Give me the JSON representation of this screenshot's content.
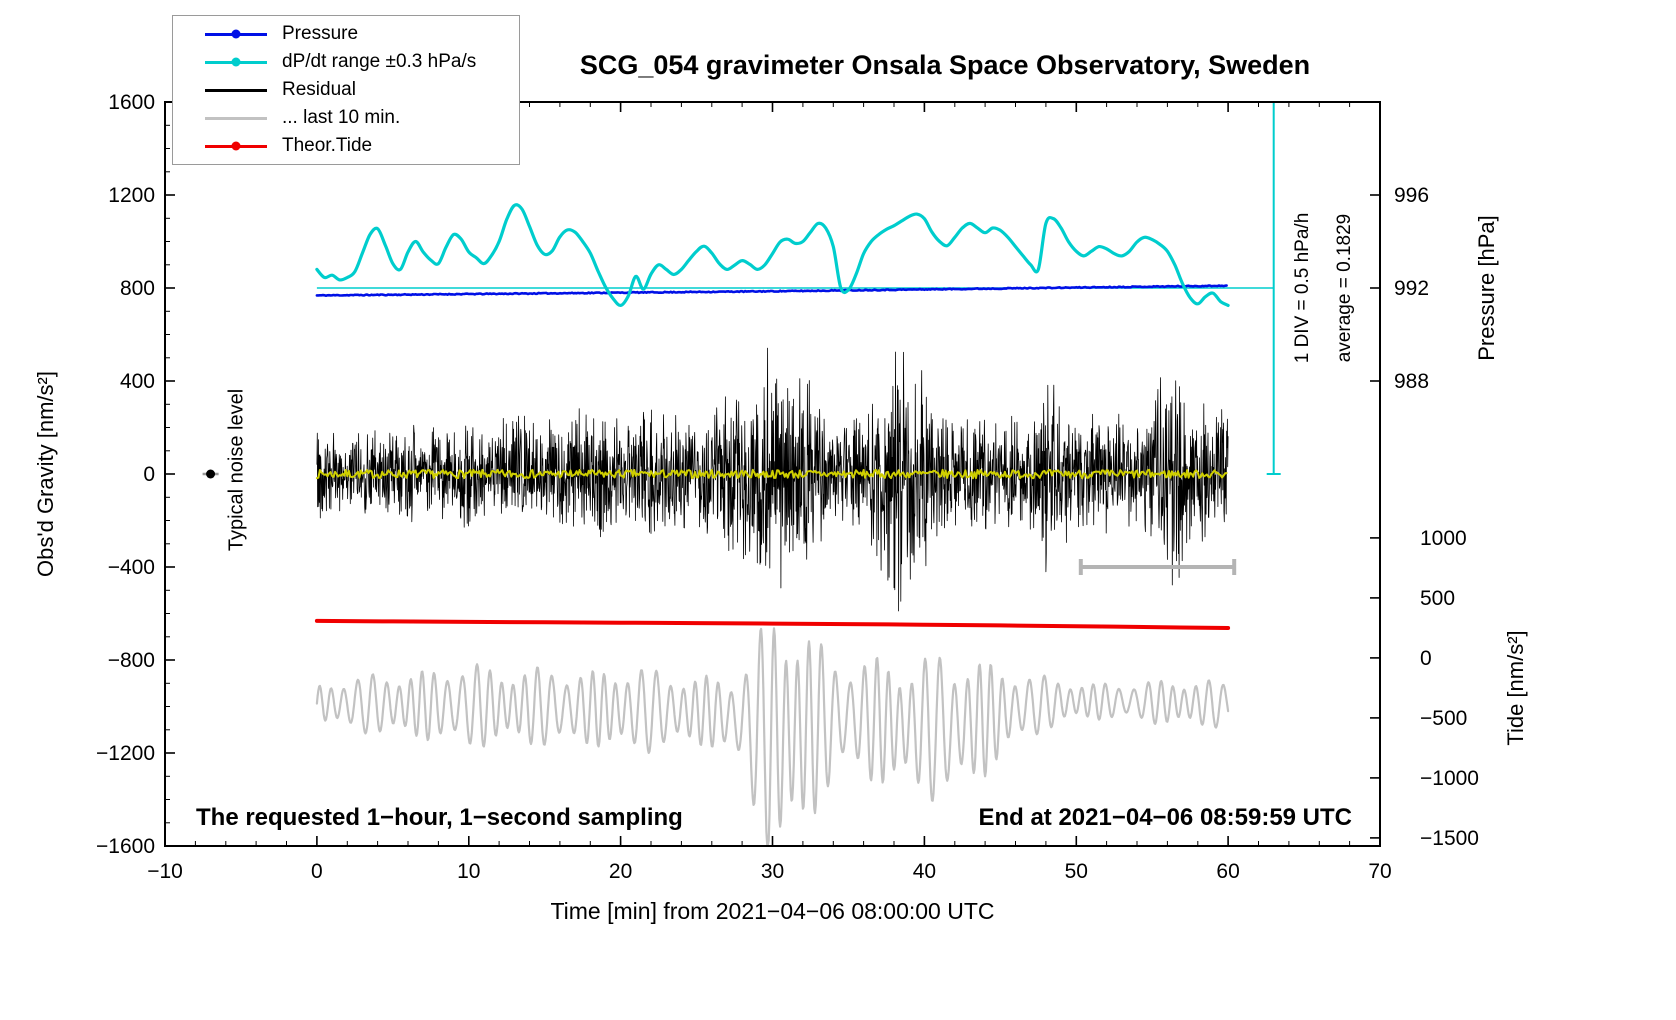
{
  "title": "SCG_054 gravimeter Onsala Space Observatory, Sweden",
  "legend": {
    "items": [
      {
        "label": "Pressure",
        "color": "#0010e6",
        "marker": true
      },
      {
        "label": "dP/dt range ±0.3 hPa/s",
        "color": "#00cdcd",
        "marker": true
      },
      {
        "label": "Residual",
        "color": "#000000",
        "marker": false
      },
      {
        "label": "... last 10 min.",
        "color": "#c2c2c2",
        "marker": false
      },
      {
        "label": "Theor.Tide",
        "color": "#f00000",
        "marker": true
      }
    ]
  },
  "annotations": {
    "noise_label": "Typical noise level",
    "div_label": "1 DIV = 0.5 hPa/h",
    "average_label": "average = 0.1829",
    "sampling_label": "The requested 1−hour, 1−second sampling",
    "end_label": "End at 2021−04−06 08:59:59 UTC"
  },
  "chart_data": {
    "type": "line",
    "x_axis": {
      "label": "Time [min] from 2021−04−06 08:00:00 UTC",
      "min": -10,
      "max": 70,
      "major_ticks": [
        -10,
        0,
        10,
        20,
        30,
        40,
        50,
        60,
        70
      ],
      "minor_step": 2
    },
    "y_left": {
      "label": "Obs'd Gravity [nm/s²]",
      "min": -1600,
      "max": 1600,
      "major_ticks": [
        1600,
        1200,
        800,
        400,
        0,
        -400,
        -800,
        -1200,
        -1600
      ],
      "minor_step": 100
    },
    "y_pressure": {
      "label": "Pressure [hPa]",
      "ticks": [
        996,
        992,
        988
      ],
      "ref_hpa": 992,
      "ref_gravity_units": 800,
      "gravity_units_per_hpa": 100
    },
    "y_tide": {
      "label": "Tide [nm/s²]",
      "ticks": [
        1000,
        500,
        0,
        -500,
        -1000,
        -1500
      ],
      "gravity_units_at_tide0": -791,
      "gravity_units_per_tide_unit": 0.5161
    },
    "series": [
      {
        "name": "pressure",
        "axis": "pressure",
        "color": "#0010e6",
        "width": 2.6,
        "control_points": [
          [
            0,
            991.68
          ],
          [
            10,
            991.74
          ],
          [
            20,
            991.8
          ],
          [
            30,
            991.86
          ],
          [
            40,
            991.94
          ],
          [
            50,
            992.02
          ],
          [
            60,
            992.1
          ]
        ],
        "noise_hpa": 0.02,
        "seed": 11
      },
      {
        "name": "dpdt_range",
        "axis": "gravity",
        "color": "#00cdcd",
        "width": 3.2,
        "x_start": 0,
        "x_step": 0.5,
        "values": [
          880,
          845,
          855,
          835,
          845,
          870,
          950,
          1030,
          1055,
          985,
          905,
          880,
          955,
          1000,
          955,
          920,
          905,
          975,
          1030,
          1010,
          955,
          930,
          905,
          940,
          1000,
          1095,
          1155,
          1140,
          1065,
          985,
          945,
          960,
          1020,
          1050,
          1040,
          1000,
          950,
          875,
          805,
          755,
          725,
          765,
          850,
          795,
          860,
          900,
          880,
          858,
          880,
          920,
          958,
          980,
          950,
          905,
          880,
          898,
          918,
          902,
          880,
          900,
          948,
          998,
          1010,
          992,
          1000,
          1040,
          1078,
          1058,
          978,
          800,
          792,
          858,
          948,
          1000,
          1030,
          1052,
          1068,
          1088,
          1108,
          1118,
          1098,
          1040,
          1000,
          982,
          1018,
          1058,
          1078,
          1058,
          1038,
          1058,
          1048,
          1018,
          978,
          938,
          900,
          880,
          1078,
          1098,
          1058,
          998,
          958,
          938,
          958,
          978,
          968,
          948,
          938,
          958,
          998,
          1018,
          1008,
          988,
          958,
          898,
          818,
          758,
          732,
          762,
          778,
          742,
          725
        ]
      },
      {
        "name": "residual",
        "axis": "gravity",
        "color": "#000000",
        "width": 0.8,
        "samples_per_min": 40,
        "seed": 42,
        "envelope": [
          [
            0,
            320
          ],
          [
            1,
            190
          ],
          [
            3,
            210
          ],
          [
            5,
            250
          ],
          [
            7,
            205
          ],
          [
            9,
            260
          ],
          [
            11,
            210
          ],
          [
            12,
            230
          ],
          [
            13,
            350
          ],
          [
            14,
            255
          ],
          [
            15,
            300
          ],
          [
            16,
            255
          ],
          [
            17,
            285
          ],
          [
            18,
            305
          ],
          [
            19,
            285
          ],
          [
            20,
            265
          ],
          [
            21,
            305
          ],
          [
            22,
            345
          ],
          [
            23,
            265
          ],
          [
            24,
            285
          ],
          [
            25,
            265
          ],
          [
            26,
            305
          ],
          [
            27,
            385
          ],
          [
            28,
            430
          ],
          [
            29,
            510
          ],
          [
            30,
            630
          ],
          [
            31,
            510
          ],
          [
            32,
            485
          ],
          [
            33,
            425
          ],
          [
            34,
            305
          ],
          [
            35,
            285
          ],
          [
            36,
            305
          ],
          [
            37,
            430
          ],
          [
            38,
            630
          ],
          [
            39,
            650
          ],
          [
            40,
            490
          ],
          [
            41,
            305
          ],
          [
            42,
            265
          ],
          [
            43,
            305
          ],
          [
            44,
            285
          ],
          [
            45,
            265
          ],
          [
            46,
            245
          ],
          [
            47,
            305
          ],
          [
            48,
            530
          ],
          [
            49,
            345
          ],
          [
            50,
            265
          ],
          [
            51,
            285
          ],
          [
            52,
            305
          ],
          [
            53,
            265
          ],
          [
            54,
            285
          ],
          [
            55,
            325
          ],
          [
            56,
            590
          ],
          [
            57,
            430
          ],
          [
            58,
            305
          ],
          [
            59,
            345
          ],
          [
            60,
            305
          ]
        ]
      },
      {
        "name": "residual_filtered",
        "axis": "gravity",
        "color": "#cfcf00",
        "width": 2,
        "samples_per_min": 10,
        "seed": 7,
        "amp": 18
      },
      {
        "name": "last_10_min",
        "axis": "tide",
        "color": "#c2c2c2",
        "width": 2.2,
        "period_min": 0.85,
        "center": [
          [
            0,
            -380
          ],
          [
            5,
            -390
          ],
          [
            10,
            -400
          ],
          [
            15,
            -410
          ],
          [
            20,
            -430
          ],
          [
            24,
            -440
          ],
          [
            26,
            -450
          ],
          [
            28,
            -520
          ],
          [
            29,
            -600
          ],
          [
            30,
            -680
          ],
          [
            31,
            -640
          ],
          [
            32,
            -600
          ],
          [
            33,
            -560
          ],
          [
            34,
            -510
          ],
          [
            35,
            -480
          ],
          [
            36,
            -500
          ],
          [
            37,
            -530
          ],
          [
            38,
            -560
          ],
          [
            40,
            -580
          ],
          [
            42,
            -570
          ],
          [
            44,
            -510
          ],
          [
            46,
            -420
          ],
          [
            48,
            -380
          ],
          [
            50,
            -360
          ],
          [
            54,
            -365
          ],
          [
            58,
            -380
          ],
          [
            60,
            -390
          ]
        ],
        "amplitude": [
          [
            0,
            150
          ],
          [
            2,
            230
          ],
          [
            4,
            260
          ],
          [
            6,
            280
          ],
          [
            8,
            300
          ],
          [
            9,
            360
          ],
          [
            10,
            380
          ],
          [
            11,
            340
          ],
          [
            12,
            310
          ],
          [
            14,
            330
          ],
          [
            16,
            340
          ],
          [
            18,
            310
          ],
          [
            20,
            360
          ],
          [
            21,
            380
          ],
          [
            23,
            330
          ],
          [
            25,
            290
          ],
          [
            27,
            320
          ],
          [
            28,
            480
          ],
          [
            29,
            800
          ],
          [
            30,
            1100
          ],
          [
            31,
            1050
          ],
          [
            32,
            900
          ],
          [
            33,
            700
          ],
          [
            34,
            560
          ],
          [
            35,
            480
          ],
          [
            36,
            500
          ],
          [
            37,
            540
          ],
          [
            38,
            560
          ],
          [
            39,
            540
          ],
          [
            40,
            600
          ],
          [
            41,
            640
          ],
          [
            42,
            600
          ],
          [
            43,
            560
          ],
          [
            44,
            480
          ],
          [
            45,
            390
          ],
          [
            46,
            330
          ],
          [
            47,
            280
          ],
          [
            48,
            230
          ],
          [
            49,
            200
          ],
          [
            50,
            170
          ],
          [
            51,
            150
          ],
          [
            53,
            160
          ],
          [
            55,
            180
          ],
          [
            57,
            200
          ],
          [
            59,
            200
          ],
          [
            60,
            190
          ]
        ]
      },
      {
        "name": "theor_tide",
        "axis": "tide",
        "color": "#f00000",
        "width": 4,
        "control_points": [
          [
            0,
            308
          ],
          [
            5,
            304
          ],
          [
            10,
            300
          ],
          [
            15,
            297
          ],
          [
            20,
            293
          ],
          [
            25,
            290
          ],
          [
            30,
            286
          ],
          [
            35,
            282
          ],
          [
            40,
            277
          ],
          [
            45,
            271
          ],
          [
            50,
            264
          ],
          [
            55,
            257
          ],
          [
            60,
            249
          ]
        ]
      }
    ],
    "extras": {
      "average_line": {
        "color": "#00cdcd",
        "gravity_value": 800,
        "x_from": 0,
        "x_to": 63
      },
      "div_scale_bar": {
        "color": "#00cdcd",
        "x": 63,
        "gravity_from": 0,
        "gravity_to": 1600
      },
      "last10_indicator": {
        "color": "#b4b4b4",
        "gravity_value": -400,
        "x_from": 50.3,
        "x_to": 60.4
      },
      "noise_marker": {
        "x": -7,
        "gravity_value": 0
      }
    }
  }
}
